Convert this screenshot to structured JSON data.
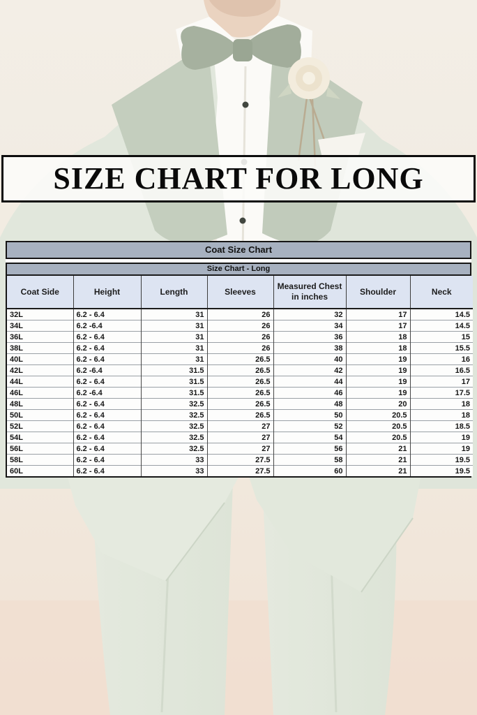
{
  "banner": {
    "title": "SIZE CHART FOR LONG"
  },
  "chart_data": {
    "type": "table",
    "title": "Coat Size Chart",
    "subtitle": "Size Chart - Long",
    "columns": [
      "Coat Side",
      "Height",
      "Length",
      "Sleeves",
      "Measured Chest in inches",
      "Shoulder",
      "Neck"
    ],
    "rows": [
      [
        "32L",
        "6.2 - 6.4",
        "31",
        "26",
        "32",
        "17",
        "14.5"
      ],
      [
        "34L",
        "6.2 -6.4",
        "31",
        "26",
        "34",
        "17",
        "14.5"
      ],
      [
        "36L",
        "6.2 - 6.4",
        "31",
        "26",
        "36",
        "18",
        "15"
      ],
      [
        "38L",
        "6.2 - 6.4",
        "31",
        "26",
        "38",
        "18",
        "15.5"
      ],
      [
        "40L",
        "6.2 - 6.4",
        "31",
        "26.5",
        "40",
        "19",
        "16"
      ],
      [
        "42L",
        "6.2 -6.4",
        "31.5",
        "26.5",
        "42",
        "19",
        "16.5"
      ],
      [
        "44L",
        "6.2 - 6.4",
        "31.5",
        "26.5",
        "44",
        "19",
        "17"
      ],
      [
        "46L",
        "6.2 -6.4",
        "31.5",
        "26.5",
        "46",
        "19",
        "17.5"
      ],
      [
        "48L",
        "6.2 - 6.4",
        "32.5",
        "26.5",
        "48",
        "20",
        "18"
      ],
      [
        "50L",
        "6.2 - 6.4",
        "32.5",
        "26.5",
        "50",
        "20.5",
        "18"
      ],
      [
        "52L",
        "6.2 - 6.4",
        "32.5",
        "27",
        "52",
        "20.5",
        "18.5"
      ],
      [
        "54L",
        "6.2 - 6.4",
        "32.5",
        "27",
        "54",
        "20.5",
        "19"
      ],
      [
        "56L",
        "6.2 - 6.4",
        "32.5",
        "27",
        "56",
        "21",
        "19"
      ],
      [
        "58L",
        "6.2 - 6.4",
        "33",
        "27.5",
        "58",
        "21",
        "19.5"
      ],
      [
        "60L",
        "6.2 - 6.4",
        "33",
        "27.5",
        "60",
        "21",
        "19.5"
      ]
    ]
  },
  "colors": {
    "bar-blue": "#a7b1c0",
    "head-blue": "#dde4f2",
    "first-col": "#b5bfcc",
    "bg-cream": "#f2ece3",
    "bg-pink": "#f1e2d6",
    "suit-sage": "#e0e6da",
    "lapel-sage": "#c4cebe",
    "bowtie-sage": "#a6b19f",
    "shirt-white": "#fbfaf7",
    "border-black": "#161616"
  }
}
